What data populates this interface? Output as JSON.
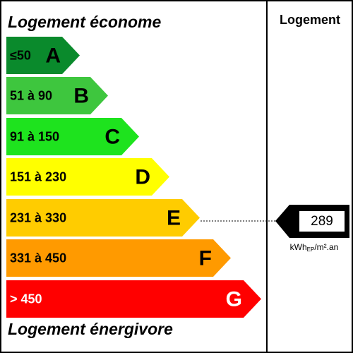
{
  "top_label": "Logement économe",
  "bottom_label": "Logement énergivore",
  "column_header": "Logement",
  "classes": [
    {
      "range": "≤50",
      "letter": "A",
      "color": "#0a8a2c",
      "text_color": "#000000"
    },
    {
      "range": "51 à 90",
      "letter": "B",
      "color": "#3ec63e",
      "text_color": "#000000"
    },
    {
      "range": "91 à 150",
      "letter": "C",
      "color": "#1ee31e",
      "text_color": "#000000"
    },
    {
      "range": "151 à 230",
      "letter": "D",
      "color": "#ffff00",
      "text_color": "#000000"
    },
    {
      "range": "231 à 330",
      "letter": "E",
      "color": "#ffcc00",
      "text_color": "#000000"
    },
    {
      "range": "331 à 450",
      "letter": "F",
      "color": "#ff9a00",
      "text_color": "#000000"
    },
    {
      "range": "> 450",
      "letter": "G",
      "color": "#ff0000",
      "text_color": "#ffffff"
    }
  ],
  "value": {
    "number": "289",
    "unit": {
      "main": "kWh",
      "sub": "EP",
      "rest": "/m².an"
    }
  }
}
